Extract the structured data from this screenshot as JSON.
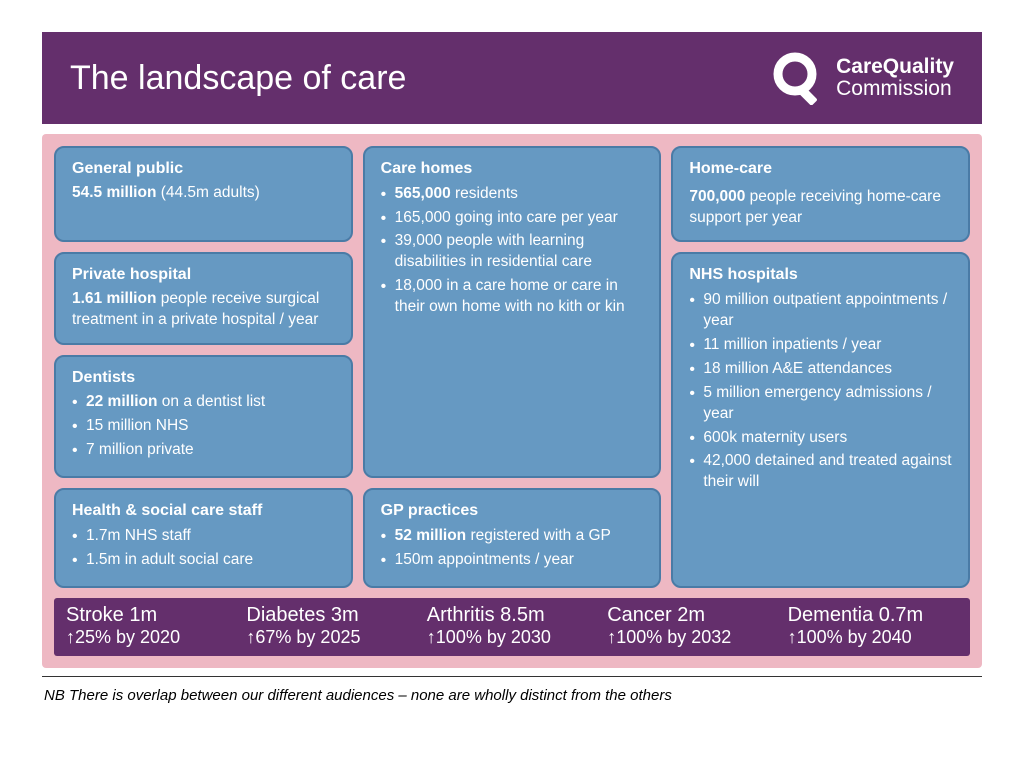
{
  "header": {
    "title": "The landscape of care",
    "logo_line1": "CareQuality",
    "logo_line2": "Commission"
  },
  "cards": {
    "genpub": {
      "title": "General public",
      "lead_bold": "54.5 million",
      "lead_rest": " (44.5m adults)"
    },
    "private": {
      "title": "Private hospital",
      "lead_bold": "1.61 million",
      "lead_rest": " people receive surgical treatment in a private hospital / year"
    },
    "dentists": {
      "title": "Dentists",
      "items": [
        {
          "bold": "22 million",
          "rest": " on a dentist list"
        },
        {
          "bold": "",
          "rest": "15 million NHS"
        },
        {
          "bold": "",
          "rest": "7 million private"
        }
      ]
    },
    "staff": {
      "title": "Health & social care staff",
      "items": [
        {
          "bold": "",
          "rest": "1.7m NHS staff"
        },
        {
          "bold": "",
          "rest": "1.5m in adult social care"
        }
      ]
    },
    "carehomes": {
      "title": "Care homes",
      "items": [
        {
          "bold": "565,000",
          "rest": " residents"
        },
        {
          "bold": "",
          "rest": "165,000 going into care per year"
        },
        {
          "bold": "",
          "rest": "39,000 people with learning disabilities in residential care"
        },
        {
          "bold": "",
          "rest": "18,000 in a care home or care in their own home with no kith or kin"
        }
      ]
    },
    "gp": {
      "title": "GP practices",
      "items": [
        {
          "bold": "52 million",
          "rest": " registered with a GP"
        },
        {
          "bold": "",
          "rest": "150m appointments / year"
        }
      ]
    },
    "homecare": {
      "title": "Home-care",
      "lead_bold": "700,000",
      "lead_rest": " people receiving home-care support per year"
    },
    "nhs": {
      "title": "NHS hospitals",
      "items": [
        {
          "bold": "",
          "rest": "90 million outpatient appointments / year"
        },
        {
          "bold": "",
          "rest": "11 million inpatients / year"
        },
        {
          "bold": "",
          "rest": "18 million A&E attendances"
        },
        {
          "bold": "",
          "rest": "5 million emergency admissions / year"
        },
        {
          "bold": "",
          "rest": "600k maternity users"
        },
        {
          "bold": "",
          "rest": "42,000 detained and treated against their will"
        }
      ]
    }
  },
  "strip": [
    {
      "name": "Stroke 1m",
      "proj": "↑25% by 2020"
    },
    {
      "name": "Diabetes 3m",
      "proj": "↑67% by 2025"
    },
    {
      "name": "Arthritis 8.5m",
      "proj": "↑100% by 2030"
    },
    {
      "name": "Cancer 2m",
      "proj": "↑100% by 2032"
    },
    {
      "name": "Dementia 0.7m",
      "proj": "↑100% by 2040"
    }
  ],
  "footnote": "NB There is overlap between our different audiences – none are wholly distinct from the others",
  "colors": {
    "header_bg": "#642f6c",
    "panel_bg": "#eeb8c3",
    "card_bg": "#6699c2",
    "card_border": "#4a7ba6"
  }
}
